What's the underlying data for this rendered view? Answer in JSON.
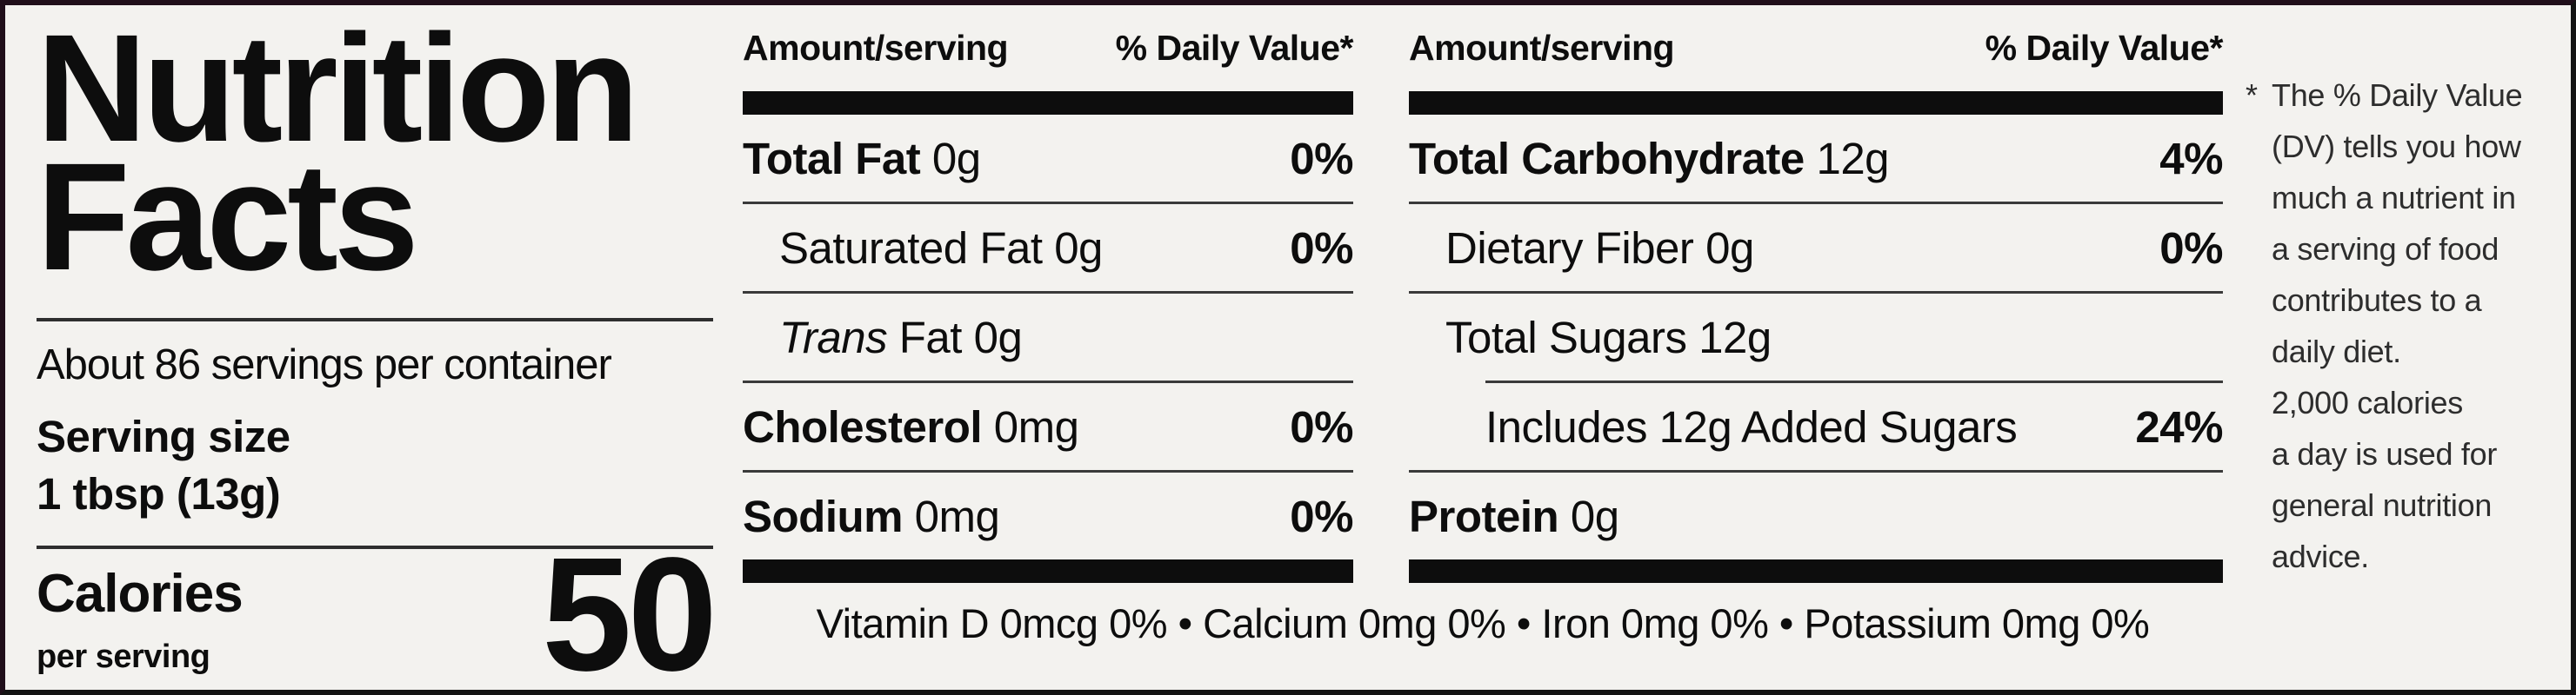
{
  "label": {
    "title_line1": "Nutrition",
    "title_line2": "Facts",
    "servings_per_container": "About 86 servings per container",
    "serving_size_label": "Serving size",
    "serving_size_value": "1 tbsp (13g)",
    "calories_label": "Calories",
    "calories_sublabel": "per serving",
    "calories_value": "50"
  },
  "columns": [
    {
      "header_amount": "Amount/serving",
      "header_dv": "% Daily Value*",
      "rows": [
        {
          "name": "Total Fat",
          "amount": "0g",
          "dv": "0%"
        },
        {
          "name": "Saturated Fat",
          "amount": "0g",
          "dv": "0%"
        },
        {
          "name_italic": "Trans",
          "name": "Fat",
          "amount": "0g",
          "dv": ""
        },
        {
          "name": "Cholesterol",
          "amount": "0mg",
          "dv": "0%"
        },
        {
          "name": "Sodium",
          "amount": "0mg",
          "dv": "0%"
        }
      ]
    },
    {
      "header_amount": "Amount/serving",
      "header_dv": "% Daily Value*",
      "rows": [
        {
          "name": "Total Carbohydrate",
          "amount": "12g",
          "dv": "4%"
        },
        {
          "name": "Dietary Fiber",
          "amount": "0g",
          "dv": "0%"
        },
        {
          "name": "Total Sugars",
          "amount": "12g",
          "dv": ""
        },
        {
          "name": "Includes 12g Added Sugars",
          "amount": "",
          "dv": "24%"
        },
        {
          "name": "Protein",
          "amount": "0g",
          "dv": ""
        }
      ]
    }
  ],
  "vitamins_line": "Vitamin D 0mcg 0% • Calcium 0mg 0% • Iron 0mg 0% • Potassium 0mg 0%",
  "footnote": {
    "asterisk": "*",
    "lines": [
      "The % Daily Value",
      "(DV) tells you how",
      "much a nutrient in",
      "a serving of food",
      "contributes to a",
      "daily diet.",
      "2,000 calories",
      "a day is used for",
      "general nutrition",
      "advice."
    ]
  },
  "colors": {
    "background": "#f3f2ef",
    "text": "#0d0d0d",
    "border": "#131313",
    "edge_tint": "#d9c2cf"
  }
}
